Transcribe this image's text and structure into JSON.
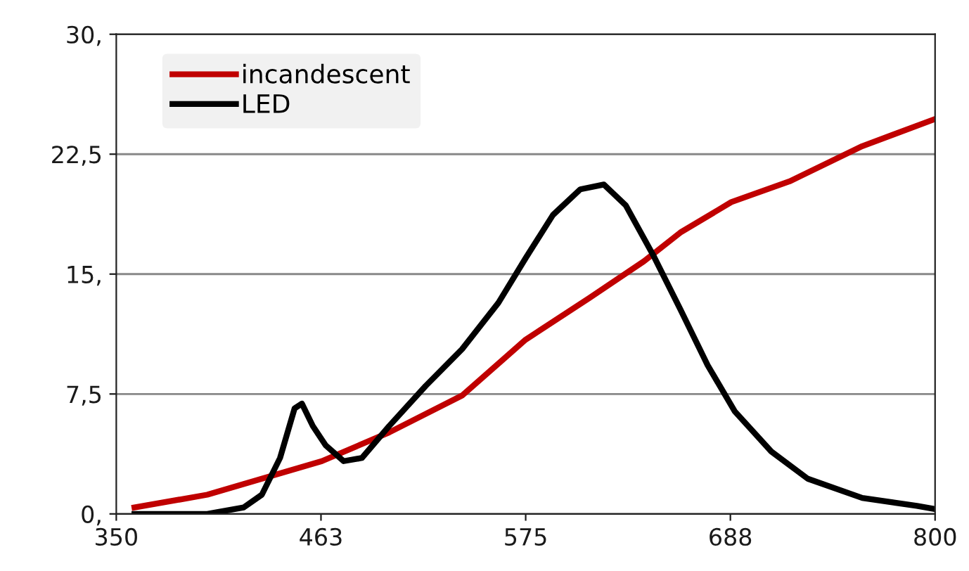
{
  "chart_data": {
    "type": "line",
    "xlim": [
      350,
      800
    ],
    "ylim": [
      0,
      30
    ],
    "xticks": [
      350,
      {
        "value": 462.5,
        "label": "463"
      },
      575,
      {
        "value": 687.5,
        "label": "688"
      },
      800
    ],
    "yticks": [
      {
        "value": 0,
        "label": "0,"
      },
      {
        "value": 7.5,
        "label": "7,5"
      },
      {
        "value": 15,
        "label": "15,"
      },
      {
        "value": 22.5,
        "label": "22,5"
      },
      {
        "value": 30,
        "label": "30,"
      }
    ],
    "grid": "y",
    "legend": "top left",
    "marker": "none",
    "line_style": "solid",
    "series": [
      {
        "name": "incandescent",
        "color": "#c00000",
        "x": [
          360,
          400,
          430,
          463,
          500,
          540,
          575,
          610,
          640,
          660,
          688,
          720,
          760,
          800
        ],
        "values": [
          0.4,
          1.2,
          2.2,
          3.3,
          5.1,
          7.4,
          10.9,
          13.5,
          15.8,
          17.6,
          19.5,
          20.8,
          23.0,
          24.7
        ]
      },
      {
        "name": "LED",
        "color": "#000000",
        "x": [
          360,
          400,
          420,
          430,
          440,
          448,
          452,
          458,
          465,
          475,
          485,
          500,
          520,
          540,
          560,
          575,
          590,
          605,
          618,
          630,
          645,
          660,
          675,
          690,
          710,
          730,
          760,
          790,
          800
        ],
        "values": [
          0,
          0,
          0.4,
          1.2,
          3.5,
          6.6,
          6.9,
          5.5,
          4.3,
          3.3,
          3.5,
          5.5,
          8.0,
          10.3,
          13.2,
          16.0,
          18.7,
          20.3,
          20.6,
          19.3,
          16.2,
          12.8,
          9.3,
          6.4,
          3.9,
          2.2,
          1.0,
          0.5,
          0.3
        ]
      }
    ]
  }
}
